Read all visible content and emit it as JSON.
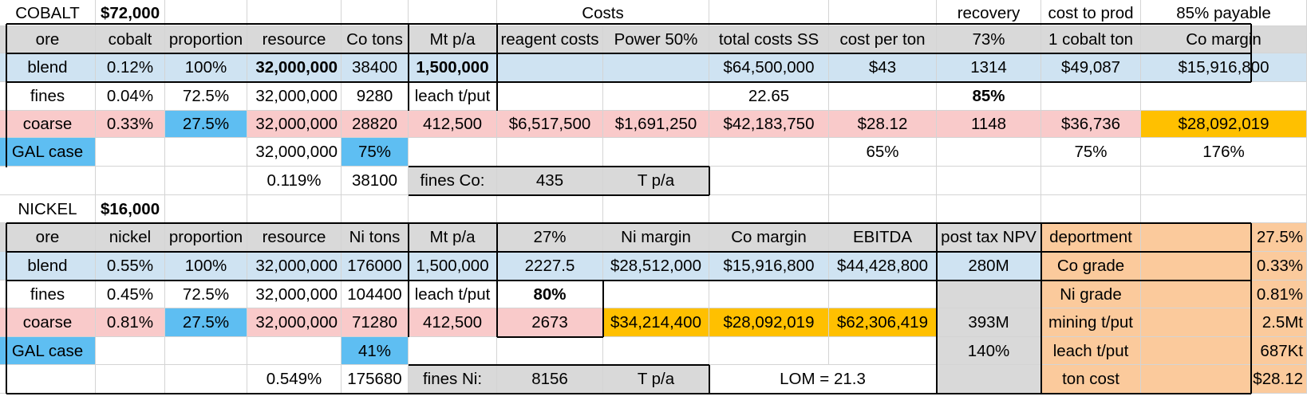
{
  "palette": {
    "white": "#ffffff",
    "grey": "#d9d9d9",
    "lightblue": "#cfe3f2",
    "pink": "#f9caca",
    "brightblue": "#5ebef2",
    "yellow": "#ffc000",
    "orange": "#fbca9c"
  },
  "sheet": {
    "rows": [
      [
        {
          "text": "COBALT",
          "align": "c"
        },
        {
          "text": "$72,000",
          "bold": true,
          "align": "l"
        },
        {
          "text": ""
        },
        {
          "text": ""
        },
        {
          "text": ""
        },
        {
          "text": ""
        },
        {
          "text": "Costs",
          "align": "c",
          "span": 2
        },
        {
          "text": ""
        },
        {
          "text": ""
        },
        {
          "text": "recovery",
          "align": "c"
        },
        {
          "text": "cost to prod",
          "align": "c"
        },
        {
          "text": "85% payable",
          "align": "c"
        }
      ],
      [
        {
          "text": "ore",
          "bg": "grey"
        },
        {
          "text": "cobalt",
          "bg": "grey"
        },
        {
          "text": "proportion",
          "bg": "grey"
        },
        {
          "text": "resource",
          "bg": "grey"
        },
        {
          "text": "Co tons",
          "bg": "grey"
        },
        {
          "text": "Mt p/a",
          "bg": "grey"
        },
        {
          "text": "reagent costs",
          "bg": "grey"
        },
        {
          "text": "Power 50%",
          "bg": "grey"
        },
        {
          "text": "total costs SS",
          "bg": "grey"
        },
        {
          "text": "cost per ton",
          "bg": "grey"
        },
        {
          "text": "73%",
          "bg": "grey"
        },
        {
          "text": "1 cobalt ton",
          "bg": "grey"
        },
        {
          "text": "Co margin",
          "bg": "grey"
        }
      ],
      [
        {
          "text": "blend",
          "bg": "lightblue"
        },
        {
          "text": "0.12%",
          "bg": "lightblue"
        },
        {
          "text": "100%",
          "bg": "lightblue"
        },
        {
          "text": "32,000,000",
          "bg": "lightblue",
          "bold": true,
          "align": "r"
        },
        {
          "text": "38400",
          "bg": "lightblue"
        },
        {
          "text": "1,500,000",
          "bg": "lightblue",
          "bold": true
        },
        {
          "text": "",
          "bg": "lightblue"
        },
        {
          "text": "",
          "bg": "lightblue"
        },
        {
          "text": "$64,500,000",
          "bg": "lightblue"
        },
        {
          "text": "$43",
          "bg": "lightblue"
        },
        {
          "text": "1314",
          "bg": "lightblue"
        },
        {
          "text": "$49,087",
          "bg": "lightblue"
        },
        {
          "text": "$15,916,800",
          "bg": "lightblue"
        }
      ],
      [
        {
          "text": "fines"
        },
        {
          "text": "0.04%"
        },
        {
          "text": "72.5%"
        },
        {
          "text": "32,000,000",
          "align": "r"
        },
        {
          "text": "9280"
        },
        {
          "text": "leach t/put"
        },
        {
          "text": ""
        },
        {
          "text": ""
        },
        {
          "text": "22.65"
        },
        {
          "text": ""
        },
        {
          "text": "85%",
          "bold": true
        },
        {
          "text": ""
        },
        {
          "text": ""
        }
      ],
      [
        {
          "text": "coarse",
          "bg": "pink"
        },
        {
          "text": "0.33%",
          "bg": "pink"
        },
        {
          "text": "27.5%",
          "bg": "brightblue"
        },
        {
          "text": "32,000,000",
          "bg": "pink",
          "align": "r"
        },
        {
          "text": "28820",
          "bg": "pink"
        },
        {
          "text": "412,500",
          "bg": "pink"
        },
        {
          "text": "$6,517,500",
          "bg": "pink"
        },
        {
          "text": "$1,691,250",
          "bg": "pink"
        },
        {
          "text": "$42,183,750",
          "bg": "pink"
        },
        {
          "text": "$28.12",
          "bg": "pink"
        },
        {
          "text": "1148",
          "bg": "pink"
        },
        {
          "text": "$36,736",
          "bg": "pink"
        },
        {
          "text": "$28,092,019",
          "bg": "yellow"
        }
      ],
      [
        {
          "text": "GAL case",
          "bg": "brightblue"
        },
        {
          "text": ""
        },
        {
          "text": ""
        },
        {
          "text": "32,000,000",
          "align": "r"
        },
        {
          "text": "75%",
          "bg": "brightblue"
        },
        {
          "text": ""
        },
        {
          "text": ""
        },
        {
          "text": ""
        },
        {
          "text": ""
        },
        {
          "text": "65%"
        },
        {
          "text": ""
        },
        {
          "text": "75%"
        },
        {
          "text": "176%"
        }
      ],
      [
        {
          "text": ""
        },
        {
          "text": ""
        },
        {
          "text": ""
        },
        {
          "text": "0.119%"
        },
        {
          "text": "38100"
        },
        {
          "text": "fines Co:",
          "bg": "grey"
        },
        {
          "text": "435",
          "bg": "grey"
        },
        {
          "text": "T p/a",
          "bg": "grey"
        },
        {
          "text": ""
        },
        {
          "text": ""
        },
        {
          "text": ""
        },
        {
          "text": ""
        },
        {
          "text": ""
        }
      ],
      [
        {
          "text": "NICKEL",
          "align": "c"
        },
        {
          "text": "$16,000",
          "bold": true,
          "align": "l"
        },
        {
          "text": ""
        },
        {
          "text": ""
        },
        {
          "text": ""
        },
        {
          "text": ""
        },
        {
          "text": ""
        },
        {
          "text": ""
        },
        {
          "text": ""
        },
        {
          "text": ""
        },
        {
          "text": ""
        },
        {
          "text": ""
        },
        {
          "text": ""
        }
      ],
      [
        {
          "text": "ore",
          "bg": "grey"
        },
        {
          "text": "nickel",
          "bg": "grey"
        },
        {
          "text": "proportion",
          "bg": "grey"
        },
        {
          "text": "resource",
          "bg": "grey"
        },
        {
          "text": "Ni tons",
          "bg": "grey"
        },
        {
          "text": "Mt p/a",
          "bg": "grey"
        },
        {
          "text": "27%",
          "bg": "grey"
        },
        {
          "text": "Ni margin",
          "bg": "grey"
        },
        {
          "text": "Co margin",
          "bg": "grey"
        },
        {
          "text": "EBITDA",
          "bg": "grey"
        },
        {
          "text": "post tax NPV",
          "bg": "grey"
        },
        {
          "text": "deportment",
          "bg": "orange"
        },
        {
          "text": "27.5%",
          "bg": "orange",
          "align": "r"
        }
      ],
      [
        {
          "text": "blend",
          "bg": "lightblue"
        },
        {
          "text": "0.55%",
          "bg": "lightblue"
        },
        {
          "text": "100%",
          "bg": "lightblue"
        },
        {
          "text": "32,000,000",
          "bg": "lightblue",
          "align": "r"
        },
        {
          "text": "176000",
          "bg": "lightblue"
        },
        {
          "text": "1,500,000",
          "bg": "lightblue"
        },
        {
          "text": "2227.5",
          "bg": "lightblue"
        },
        {
          "text": "$28,512,000",
          "bg": "lightblue"
        },
        {
          "text": "$15,916,800",
          "bg": "lightblue"
        },
        {
          "text": "$44,428,800",
          "bg": "lightblue"
        },
        {
          "text": "280M",
          "bg": "lightblue"
        },
        {
          "text": "Co grade",
          "bg": "orange"
        },
        {
          "text": "0.33%",
          "bg": "orange",
          "align": "r"
        }
      ],
      [
        {
          "text": "fines"
        },
        {
          "text": "0.45%"
        },
        {
          "text": "72.5%"
        },
        {
          "text": "32,000,000",
          "align": "r"
        },
        {
          "text": "104400"
        },
        {
          "text": "leach t/put"
        },
        {
          "text": "80%",
          "bold": true
        },
        {
          "text": ""
        },
        {
          "text": ""
        },
        {
          "text": ""
        },
        {
          "text": "",
          "bg": "grey"
        },
        {
          "text": "Ni grade",
          "bg": "orange"
        },
        {
          "text": "0.81%",
          "bg": "orange",
          "align": "r"
        }
      ],
      [
        {
          "text": "coarse",
          "bg": "pink"
        },
        {
          "text": "0.81%",
          "bg": "pink"
        },
        {
          "text": "27.5%",
          "bg": "brightblue"
        },
        {
          "text": "32,000,000",
          "bg": "pink",
          "align": "r"
        },
        {
          "text": "71280",
          "bg": "pink"
        },
        {
          "text": "412,500",
          "bg": "pink"
        },
        {
          "text": "2673",
          "bg": "pink"
        },
        {
          "text": "$34,214,400",
          "bg": "yellow"
        },
        {
          "text": "$28,092,019",
          "bg": "yellow"
        },
        {
          "text": "$62,306,419",
          "bg": "yellow"
        },
        {
          "text": "393M",
          "bg": "grey"
        },
        {
          "text": "mining t/put",
          "bg": "orange"
        },
        {
          "text": "2.5Mt",
          "bg": "orange",
          "align": "r"
        }
      ],
      [
        {
          "text": "GAL case",
          "bg": "brightblue"
        },
        {
          "text": ""
        },
        {
          "text": ""
        },
        {
          "text": ""
        },
        {
          "text": "41%",
          "bg": "brightblue"
        },
        {
          "text": ""
        },
        {
          "text": ""
        },
        {
          "text": ""
        },
        {
          "text": ""
        },
        {
          "text": ""
        },
        {
          "text": "140%",
          "bg": "grey"
        },
        {
          "text": "leach t/put",
          "bg": "orange"
        },
        {
          "text": "687Kt",
          "bg": "orange",
          "align": "r"
        }
      ],
      [
        {
          "text": ""
        },
        {
          "text": ""
        },
        {
          "text": ""
        },
        {
          "text": "0.549%"
        },
        {
          "text": "175680"
        },
        {
          "text": "fines Ni:",
          "bg": "grey"
        },
        {
          "text": "8156",
          "bg": "grey"
        },
        {
          "text": "T p/a",
          "bg": "grey"
        },
        {
          "text": "LOM = 21.3",
          "span": 2
        },
        {
          "text": "",
          "bg": "grey"
        },
        {
          "text": "ton cost",
          "bg": "orange"
        },
        {
          "text": "$28.12",
          "bg": "orange",
          "align": "r"
        }
      ]
    ]
  }
}
